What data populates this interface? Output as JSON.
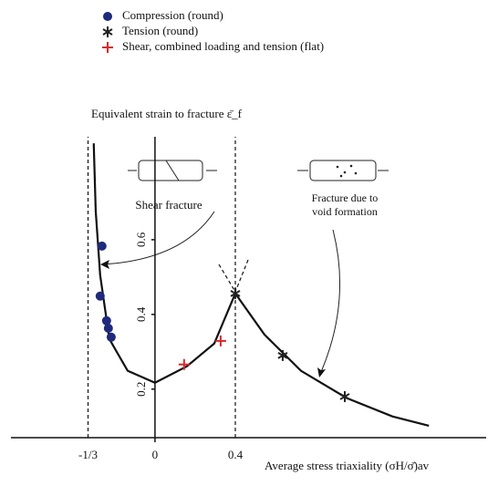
{
  "chart_data": {
    "type": "scatter",
    "title": "Equivalent strain to fracture ε̄_f",
    "xlabel": "Average stress triaxiality (σH/σ̄)av",
    "annotations": [
      "Shear fracture",
      "Fracture due to void formation"
    ],
    "xlim": [
      -0.59,
      1.59
    ],
    "ylim": [
      0.07,
      0.9
    ],
    "xticks": [
      {
        "value": -0.3333,
        "label": "-1/3"
      },
      0,
      0.4
    ],
    "yticks": [
      0.2,
      0.4,
      0.6
    ],
    "series": [
      {
        "name": "Compression (round)",
        "color": "#1f2a7a",
        "marker": "circle",
        "x": [
          -0.264,
          -0.273,
          -0.241,
          -0.232,
          -0.218
        ],
        "values": [
          0.583,
          0.449,
          0.383,
          0.363,
          0.339
        ]
      },
      {
        "name": "Tension (round)",
        "color": "#222222",
        "marker": "star",
        "x": [
          0.4,
          0.636,
          0.945
        ],
        "values": [
          0.456,
          0.29,
          0.18
        ]
      },
      {
        "name": "Shear, combined loading and tension (flat)",
        "color": "#d62a2a",
        "marker": "plus",
        "x": [
          0.145,
          0.327
        ],
        "values": [
          0.266,
          0.329
        ]
      }
    ],
    "curve": {
      "color": "#111111",
      "x": [
        -0.305,
        -0.295,
        -0.273,
        -0.227,
        -0.136,
        0,
        0.159,
        0.295,
        0.4,
        0.545,
        0.727,
        0.955,
        1.182,
        1.364
      ],
      "values": [
        0.858,
        0.676,
        0.505,
        0.334,
        0.249,
        0.217,
        0.261,
        0.322,
        0.456,
        0.346,
        0.249,
        0.176,
        0.127,
        0.102
      ]
    }
  }
}
